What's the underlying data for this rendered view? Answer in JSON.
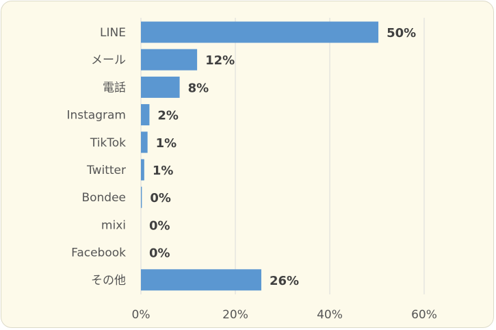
{
  "chart_data": {
    "type": "bar",
    "orientation": "horizontal",
    "categories": [
      "LINE",
      "メール",
      "電話",
      "Instagram",
      "TikTok",
      "Twitter",
      "Bondee",
      "mixi",
      "Facebook",
      "その他"
    ],
    "values": [
      50.3,
      11.9,
      8.2,
      1.8,
      1.4,
      0.7,
      0.2,
      0.0,
      0.0,
      25.5
    ],
    "value_labels": [
      "50%",
      "12%",
      "8%",
      "2%",
      "1%",
      "1%",
      "0%",
      "0%",
      "0%",
      "26%"
    ],
    "x_ticks": [
      "0%",
      "20%",
      "40%",
      "60%"
    ],
    "xlim": [
      0,
      60
    ],
    "grid": "vertical",
    "bar_color": "#5b97d1",
    "gridline_color": "#d9d9d9",
    "background_color": "#fdfaea",
    "title": "",
    "xlabel": "",
    "ylabel": ""
  }
}
